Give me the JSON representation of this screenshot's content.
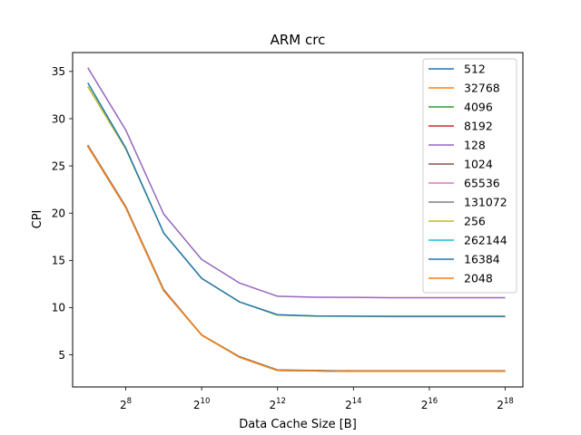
{
  "chart_data": {
    "type": "line",
    "title": "ARM crc",
    "xlabel": "Data Cache Size [B]",
    "ylabel": "CPI",
    "x_scale": "log2",
    "x": [
      128,
      256,
      512,
      1024,
      2048,
      4096,
      8192,
      16384,
      32768,
      65536,
      131072,
      262144
    ],
    "xlim": [
      97,
      362000
    ],
    "ylim": [
      1.6,
      37.0
    ],
    "x_ticks": [
      {
        "value": 256,
        "base": "2",
        "exp": "8"
      },
      {
        "value": 1024,
        "base": "2",
        "exp": "10"
      },
      {
        "value": 4096,
        "base": "2",
        "exp": "12"
      },
      {
        "value": 16384,
        "base": "2",
        "exp": "14"
      },
      {
        "value": 65536,
        "base": "2",
        "exp": "16"
      },
      {
        "value": 262144,
        "base": "2",
        "exp": "18"
      }
    ],
    "y_ticks": [
      5,
      10,
      15,
      20,
      25,
      30,
      35
    ],
    "grid": false,
    "legend_position": "top-right",
    "series": [
      {
        "name": "512",
        "color": "#1f77b4",
        "values": [
          27.2,
          20.7,
          11.9,
          7.1,
          4.8,
          3.4,
          3.35,
          3.3,
          3.3,
          3.3,
          3.3,
          3.3
        ]
      },
      {
        "name": "32768",
        "color": "#ff7f0e",
        "values": [
          27.1,
          20.6,
          11.8,
          7.1,
          4.75,
          3.35,
          3.3,
          3.25,
          3.25,
          3.25,
          3.25,
          3.25
        ]
      },
      {
        "name": "4096",
        "color": "#2ca02c",
        "values": [
          27.15,
          20.65,
          11.85,
          7.1,
          4.78,
          3.38,
          3.32,
          3.28,
          3.28,
          3.28,
          3.28,
          3.28
        ]
      },
      {
        "name": "8192",
        "color": "#d62728",
        "values": [
          27.15,
          20.65,
          11.85,
          7.1,
          4.78,
          3.38,
          3.32,
          3.28,
          3.28,
          3.28,
          3.28,
          3.28
        ]
      },
      {
        "name": "128",
        "color": "#9467bd",
        "values": [
          35.4,
          28.8,
          19.9,
          15.1,
          12.6,
          11.2,
          11.1,
          11.08,
          11.05,
          11.05,
          11.05,
          11.05
        ]
      },
      {
        "name": "1024",
        "color": "#8c564b",
        "values": [
          27.1,
          20.6,
          11.8,
          7.1,
          4.75,
          3.35,
          3.3,
          3.25,
          3.25,
          3.25,
          3.25,
          3.25
        ]
      },
      {
        "name": "65536",
        "color": "#e377c2",
        "values": [
          27.1,
          20.6,
          11.8,
          7.1,
          4.75,
          3.35,
          3.3,
          3.25,
          3.25,
          3.25,
          3.25,
          3.25
        ]
      },
      {
        "name": "131072",
        "color": "#7f7f7f",
        "values": [
          27.1,
          20.6,
          11.8,
          7.1,
          4.75,
          3.35,
          3.3,
          3.25,
          3.25,
          3.25,
          3.25,
          3.25
        ]
      },
      {
        "name": "256",
        "color": "#bcbd22",
        "values": [
          33.4,
          26.8,
          17.9,
          13.1,
          10.6,
          9.2,
          9.1,
          9.08,
          9.05,
          9.05,
          9.05,
          9.05
        ]
      },
      {
        "name": "262144",
        "color": "#17becf",
        "values": [
          27.1,
          20.6,
          11.8,
          7.1,
          4.75,
          3.35,
          3.3,
          3.25,
          3.25,
          3.25,
          3.25,
          3.25
        ]
      },
      {
        "name": "16384",
        "color": "#1f77b4",
        "values": [
          33.8,
          26.9,
          17.9,
          13.1,
          10.6,
          9.25,
          9.12,
          9.1,
          9.08,
          9.08,
          9.08,
          9.08
        ]
      },
      {
        "name": "2048",
        "color": "#ff7f0e",
        "values": [
          27.1,
          20.6,
          11.8,
          7.1,
          4.75,
          3.35,
          3.3,
          3.25,
          3.25,
          3.25,
          3.25,
          3.25
        ]
      }
    ]
  }
}
